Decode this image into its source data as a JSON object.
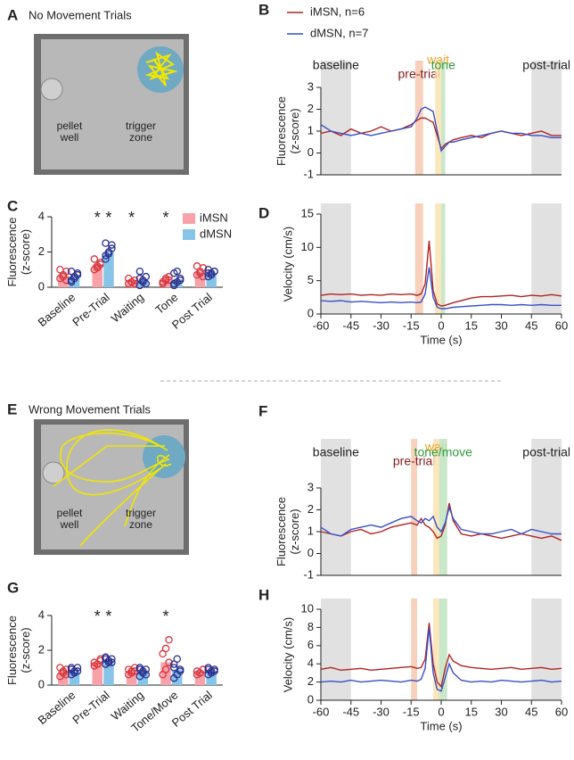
{
  "photos": [
    {
      "label": "A",
      "title": "No Movement Trials",
      "pellet_well": [
        "pellet",
        "well"
      ],
      "trigger_zone": [
        "trigger",
        "zone"
      ]
    },
    {
      "label": "E",
      "title": "Wrong Movement Trials",
      "pellet_well": [
        "pellet",
        "well"
      ],
      "trigger_zone": [
        "trigger",
        "zone"
      ]
    }
  ],
  "chart_data": [
    {
      "type": "line",
      "panel": "B",
      "ylabel": [
        "Fluorescence",
        "(z-score)"
      ],
      "x": [
        -60,
        -55,
        -50,
        -45,
        -40,
        -35,
        -30,
        -25,
        -20,
        -15,
        -12,
        -10,
        -8,
        -6,
        -4,
        -2,
        0,
        2,
        4,
        6,
        10,
        15,
        20,
        25,
        30,
        35,
        40,
        45,
        50,
        55,
        60
      ],
      "xlim": [
        -60,
        60
      ],
      "ylim": [
        -1,
        3
      ],
      "yticks": [
        -1,
        0,
        1,
        2,
        3
      ],
      "regions": [
        {
          "label": "baseline",
          "label_color": "#222222",
          "range": [
            -60,
            -45
          ],
          "color": "#dcdcdc"
        },
        {
          "label": "pre-trial",
          "label_color": "#8b1a1a",
          "range": [
            -13,
            -9
          ],
          "color": "#f6c9b0"
        },
        {
          "label": "wait",
          "label_color": "#f0a020",
          "range": [
            -3,
            0
          ],
          "color": "#fbe2b0"
        },
        {
          "label": "tone",
          "label_color": "#2e9a3e",
          "range": [
            0,
            2
          ],
          "color": "#bfe3bf"
        },
        {
          "label": "post-trial",
          "label_color": "#222222",
          "range": [
            45,
            60
          ],
          "color": "#dcdcdc"
        }
      ],
      "series": [
        {
          "name": "iMSN, n=6",
          "color": "#b22222",
          "values": [
            0.9,
            1.0,
            0.8,
            1.1,
            0.9,
            1.0,
            1.2,
            1.0,
            1.1,
            1.3,
            1.5,
            1.6,
            1.6,
            1.5,
            1.4,
            0.8,
            0.2,
            0.4,
            0.5,
            0.6,
            0.7,
            0.8,
            0.7,
            0.9,
            1.0,
            0.9,
            0.8,
            0.9,
            1.0,
            0.8,
            0.8
          ]
        },
        {
          "name": "dMSN, n=7",
          "color": "#3a4fc8",
          "values": [
            1.3,
            1.0,
            0.9,
            0.8,
            0.9,
            0.8,
            0.9,
            1.0,
            1.1,
            1.2,
            1.6,
            2.0,
            2.1,
            2.0,
            1.9,
            1.0,
            0.1,
            0.3,
            0.5,
            0.5,
            0.6,
            0.7,
            0.8,
            0.9,
            1.0,
            0.9,
            0.9,
            0.8,
            0.8,
            0.7,
            0.7
          ]
        }
      ]
    },
    {
      "type": "bar",
      "panel": "C",
      "ylabel": [
        "Fluorescence",
        "(z-score)"
      ],
      "categories": [
        "Baseline",
        "Pre-Trial",
        "Waiting",
        "Tone",
        "Post Trial"
      ],
      "ylim": [
        0,
        4
      ],
      "yticks": [
        0,
        2,
        4
      ],
      "series": [
        {
          "name": "iMSN",
          "color": "#f7a1a8",
          "edge": "#d9363e",
          "values": [
            0.7,
            1.3,
            0.35,
            0.4,
            0.9
          ],
          "points": [
            [
              0.5,
              0.7,
              0.9,
              1.0,
              0.6,
              0.4
            ],
            [
              1.0,
              1.2,
              1.4,
              1.6,
              1.1,
              1.3
            ],
            [
              0.2,
              0.3,
              0.4,
              0.5,
              0.3,
              0.2
            ],
            [
              0.2,
              0.4,
              0.6,
              0.3,
              0.5,
              0.4
            ],
            [
              0.7,
              0.9,
              1.1,
              1.2,
              0.8,
              0.6
            ]
          ]
        },
        {
          "name": "dMSN",
          "color": "#86c5e8",
          "edge": "#2b2f8f",
          "values": [
            0.6,
            2.0,
            0.4,
            0.45,
            0.8
          ],
          "points": [
            [
              0.3,
              0.6,
              0.8,
              0.9,
              0.5,
              0.7,
              0.4
            ],
            [
              1.6,
              1.9,
              2.2,
              2.5,
              2.0,
              2.4,
              1.8
            ],
            [
              0.1,
              0.3,
              0.6,
              0.9,
              0.4,
              0.2,
              0.5
            ],
            [
              0.1,
              0.3,
              0.5,
              0.8,
              0.9,
              0.4,
              0.2
            ],
            [
              0.6,
              0.8,
              0.9,
              1.0,
              0.7,
              0.9,
              0.8
            ]
          ]
        }
      ],
      "annotations": [
        {
          "text": "*",
          "category": 1,
          "series": 0
        },
        {
          "text": "*",
          "category": 1,
          "series": 1
        },
        {
          "text": "*",
          "category": 2,
          "series": 0
        },
        {
          "text": "*",
          "category": 3,
          "series": 0
        }
      ]
    },
    {
      "type": "line",
      "panel": "D",
      "ylabel": [
        "Velocity (cm/s)"
      ],
      "xlabel": "Time (s)",
      "x": [
        -60,
        -55,
        -50,
        -45,
        -40,
        -35,
        -30,
        -25,
        -20,
        -15,
        -12,
        -10,
        -8,
        -6,
        -4,
        -2,
        0,
        2,
        4,
        6,
        10,
        15,
        20,
        25,
        30,
        35,
        40,
        45,
        50,
        55,
        60
      ],
      "xlim": [
        -60,
        60
      ],
      "xticks": [
        -60,
        -45,
        -30,
        -15,
        0,
        15,
        30,
        45,
        60
      ],
      "ylim": [
        0,
        15
      ],
      "yticks": [
        0,
        5,
        10,
        15
      ],
      "regions": [
        {
          "range": [
            -60,
            -45
          ],
          "color": "#dcdcdc"
        },
        {
          "range": [
            -13,
            -9
          ],
          "color": "#f6c9b0"
        },
        {
          "range": [
            -3,
            0
          ],
          "color": "#fbe2b0"
        },
        {
          "range": [
            0,
            2
          ],
          "color": "#bfe3bf"
        },
        {
          "range": [
            45,
            60
          ],
          "color": "#dcdcdc"
        }
      ],
      "series": [
        {
          "color": "#b22222",
          "values": [
            2.8,
            3.0,
            2.9,
            3.0,
            2.8,
            2.9,
            2.8,
            3.0,
            2.9,
            3.0,
            2.8,
            3.0,
            4.5,
            11.0,
            3.5,
            1.5,
            1.2,
            1.3,
            1.5,
            1.7,
            2.0,
            2.4,
            2.6,
            2.6,
            2.7,
            2.8,
            2.6,
            2.8,
            2.7,
            2.9,
            2.7
          ]
        },
        {
          "color": "#3a4fc8",
          "values": [
            2.0,
            1.9,
            2.0,
            1.8,
            1.9,
            1.8,
            1.7,
            1.8,
            1.7,
            1.8,
            1.7,
            1.8,
            3.0,
            7.0,
            2.5,
            1.0,
            0.8,
            0.8,
            0.9,
            1.0,
            1.1,
            1.2,
            1.3,
            1.4,
            1.4,
            1.3,
            1.4,
            1.3,
            1.4,
            1.3,
            1.3
          ]
        }
      ]
    },
    {
      "type": "line",
      "panel": "F",
      "ylabel": [
        "Fluorescence",
        "(z-score)"
      ],
      "x": [
        -60,
        -55,
        -50,
        -45,
        -40,
        -35,
        -30,
        -25,
        -20,
        -15,
        -12,
        -10,
        -8,
        -6,
        -4,
        -2,
        0,
        2,
        4,
        6,
        10,
        15,
        20,
        25,
        30,
        35,
        40,
        45,
        50,
        55,
        60
      ],
      "xlim": [
        -60,
        60
      ],
      "ylim": [
        -1,
        3
      ],
      "yticks": [
        -1,
        0,
        1,
        2,
        3
      ],
      "regions": [
        {
          "label": "baseline",
          "label_color": "#222222",
          "range": [
            -60,
            -45
          ],
          "color": "#dcdcdc"
        },
        {
          "label": "pre-trial",
          "label_color": "#8b1a1a",
          "range": [
            -15,
            -12
          ],
          "color": "#f6c9b0"
        },
        {
          "label": "wait",
          "label_color": "#f0a020",
          "range": [
            -4,
            -1
          ],
          "color": "#fbe2b0"
        },
        {
          "label": "tone/move",
          "label_color": "#2e9a3e",
          "range": [
            -1,
            3
          ],
          "color": "#bfe3bf"
        },
        {
          "label": "post-trial",
          "label_color": "#222222",
          "range": [
            45,
            60
          ],
          "color": "#dcdcdc"
        }
      ],
      "series": [
        {
          "color": "#b22222",
          "values": [
            1.0,
            0.9,
            0.8,
            1.0,
            1.1,
            0.9,
            1.0,
            1.2,
            1.3,
            1.4,
            1.3,
            1.6,
            1.3,
            1.2,
            1.0,
            0.7,
            0.8,
            1.3,
            2.3,
            1.5,
            0.9,
            0.8,
            0.9,
            0.8,
            0.7,
            0.8,
            0.9,
            0.8,
            0.7,
            0.8,
            0.6
          ]
        },
        {
          "color": "#3a4fc8",
          "values": [
            1.2,
            0.9,
            0.8,
            1.1,
            1.2,
            1.3,
            1.2,
            1.4,
            1.6,
            1.7,
            1.5,
            1.4,
            1.6,
            1.5,
            1.7,
            1.2,
            1.0,
            1.4,
            2.1,
            1.6,
            1.1,
            1.0,
            0.9,
            0.9,
            1.0,
            1.1,
            0.9,
            1.1,
            1.0,
            0.9,
            0.9
          ]
        }
      ]
    },
    {
      "type": "bar",
      "panel": "G",
      "ylabel": [
        "Fluorescence",
        "(z-score)"
      ],
      "categories": [
        "Baseline",
        "Pre-Trial",
        "Waiting",
        "Tone/Move",
        "Post Trial"
      ],
      "ylim": [
        0,
        4
      ],
      "yticks": [
        0,
        2,
        4
      ],
      "series": [
        {
          "color": "#f7a1a8",
          "edge": "#d9363e",
          "values": [
            0.8,
            1.3,
            0.8,
            1.3,
            0.8
          ],
          "points": [
            [
              0.5,
              0.7,
              0.9,
              1.0,
              0.8,
              0.6
            ],
            [
              1.1,
              1.2,
              1.4,
              1.3,
              1.2,
              1.5
            ],
            [
              0.6,
              0.8,
              1.0,
              0.9,
              0.7,
              0.8
            ],
            [
              0.6,
              0.9,
              1.3,
              1.8,
              2.1,
              2.6
            ],
            [
              0.6,
              0.7,
              0.9,
              0.8,
              0.7,
              0.9
            ]
          ]
        },
        {
          "color": "#86c5e8",
          "edge": "#2b2f8f",
          "values": [
            0.8,
            1.4,
            0.8,
            0.9,
            0.8
          ],
          "points": [
            [
              0.6,
              0.8,
              1.0,
              0.9,
              0.7,
              0.8,
              1.0
            ],
            [
              1.2,
              1.3,
              1.5,
              1.6,
              1.4,
              1.3,
              1.5
            ],
            [
              0.5,
              0.7,
              0.9,
              1.0,
              0.8,
              0.6,
              0.9
            ],
            [
              0.4,
              0.6,
              0.9,
              1.2,
              1.5,
              0.8,
              1.0
            ],
            [
              0.6,
              0.8,
              0.9,
              1.0,
              0.7,
              0.8,
              0.9
            ]
          ]
        }
      ],
      "annotations": [
        {
          "text": "*",
          "category": 1,
          "series": 0
        },
        {
          "text": "*",
          "category": 1,
          "series": 1
        },
        {
          "text": "*",
          "category": 3,
          "series": 0
        }
      ]
    },
    {
      "type": "line",
      "panel": "H",
      "ylabel": [
        "Velocity (cm/s)"
      ],
      "xlabel": "Time (s)",
      "x": [
        -60,
        -55,
        -50,
        -45,
        -40,
        -35,
        -30,
        -25,
        -20,
        -15,
        -12,
        -10,
        -8,
        -6,
        -4,
        -2,
        0,
        2,
        4,
        6,
        10,
        15,
        20,
        25,
        30,
        35,
        40,
        45,
        50,
        55,
        60
      ],
      "xlim": [
        -60,
        60
      ],
      "xticks": [
        -60,
        -45,
        -30,
        -15,
        0,
        15,
        30,
        45,
        60
      ],
      "ylim": [
        0,
        10
      ],
      "yticks": [
        0,
        2,
        4,
        6,
        8,
        10
      ],
      "regions": [
        {
          "range": [
            -60,
            -45
          ],
          "color": "#dcdcdc"
        },
        {
          "range": [
            -15,
            -12
          ],
          "color": "#f6c9b0"
        },
        {
          "range": [
            -4,
            -1
          ],
          "color": "#fbe2b0"
        },
        {
          "range": [
            -1,
            3
          ],
          "color": "#bfe3bf"
        },
        {
          "range": [
            45,
            60
          ],
          "color": "#dcdcdc"
        }
      ],
      "series": [
        {
          "color": "#b22222",
          "values": [
            3.4,
            3.6,
            3.3,
            3.4,
            3.5,
            3.3,
            3.4,
            3.5,
            3.6,
            3.7,
            3.5,
            3.6,
            4.5,
            8.5,
            4.0,
            2.0,
            1.5,
            3.5,
            5.0,
            4.3,
            3.8,
            3.6,
            3.5,
            3.4,
            3.5,
            3.6,
            3.4,
            3.5,
            3.6,
            3.4,
            3.5
          ]
        },
        {
          "color": "#3a4fc8",
          "values": [
            2.0,
            2.1,
            2.0,
            2.2,
            2.0,
            2.1,
            2.2,
            2.1,
            2.0,
            2.2,
            2.1,
            2.3,
            3.5,
            8.0,
            3.0,
            1.2,
            1.0,
            2.5,
            4.0,
            3.0,
            2.2,
            2.0,
            2.1,
            2.0,
            2.2,
            2.1,
            2.0,
            2.1,
            2.2,
            2.0,
            2.1
          ]
        }
      ]
    }
  ]
}
